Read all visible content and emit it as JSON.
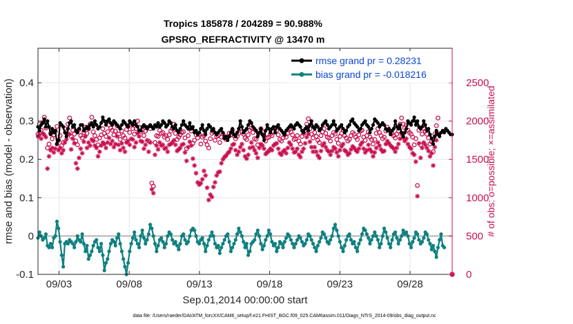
{
  "chart_data": {
    "type": "line",
    "title": "Tropics 185878 / 204289 = 90.988%",
    "subtitle": "GPSRO_REFRACTIVITY @ 13470 m",
    "xlabel": "Sep.01,2014 00:00:00 start",
    "ylabel": "rmse and bias (model - observation)",
    "ylabel_right": "# of obs: o=possible; ×=assimilated",
    "footer": "data file: /Users/raeder/DAI/ATM_forcXX/CAM6_setup/f.e21.FHIST_BGC.f09_025.CAM6assim.011/Diags_NTrS_2014-09/obs_diag_output.nc",
    "x_ticks": [
      "09/03",
      "09/08",
      "09/13",
      "09/18",
      "09/23",
      "09/28"
    ],
    "x_tick_days": [
      3,
      8,
      13,
      18,
      23,
      28
    ],
    "x_range_days": [
      1.5,
      31.0
    ],
    "y_ticks": [
      "-0.1",
      "0",
      "0.1",
      "0.2",
      "0.3",
      "0.4"
    ],
    "y_tick_values": [
      -0.1,
      0,
      0.1,
      0.2,
      0.3,
      0.4
    ],
    "ylim": [
      -0.1,
      0.49
    ],
    "y2_ticks": [
      "0",
      "500",
      "1000",
      "1500",
      "2000",
      "2500"
    ],
    "y2_tick_values": [
      0,
      500,
      1000,
      1500,
      2000,
      2500
    ],
    "y2lim": [
      0,
      2950
    ],
    "legend": [
      {
        "label": "rmse grand pr = 0.28231",
        "color": "#000000"
      },
      {
        "label": "bias grand pr = -0.018216",
        "color": "#0f8080"
      }
    ],
    "series": [
      {
        "name": "rmse",
        "color": "#000000",
        "values": [
          0.285,
          0.275,
          0.29,
          0.295,
          0.305,
          0.285,
          0.3,
          0.285,
          0.265,
          0.28,
          0.27,
          0.275,
          0.24,
          0.25,
          0.295,
          0.29,
          0.285,
          0.27,
          0.26,
          0.28,
          0.295,
          0.3,
          0.285,
          0.29,
          0.275,
          0.27,
          0.28,
          0.29,
          0.29,
          0.275,
          0.28,
          0.285,
          0.28,
          0.29,
          0.295,
          0.285,
          0.3,
          0.29,
          0.28,
          0.285,
          0.295,
          0.31,
          0.3,
          0.29,
          0.3,
          0.305,
          0.295,
          0.29,
          0.3,
          0.295,
          0.29,
          0.285,
          0.28,
          0.29,
          0.3,
          0.295,
          0.29,
          0.285,
          0.3,
          0.295,
          0.29,
          0.3,
          0.29,
          0.285,
          0.275,
          0.275,
          0.285,
          0.29,
          0.285,
          0.28,
          0.285,
          0.29,
          0.285,
          0.28,
          0.29,
          0.285,
          0.295,
          0.285,
          0.29,
          0.3,
          0.295,
          0.285,
          0.29,
          0.3,
          0.295,
          0.285,
          0.28,
          0.29,
          0.275,
          0.27,
          0.28,
          0.29,
          0.3,
          0.29,
          0.285,
          0.28,
          0.295,
          0.28,
          0.285,
          0.27,
          0.275,
          0.265,
          0.27,
          0.28,
          0.29,
          0.275,
          0.265,
          0.28,
          0.29,
          0.285,
          0.275,
          0.28,
          0.27,
          0.265,
          0.27,
          0.275,
          0.28,
          0.27,
          0.255,
          0.26,
          0.25,
          0.26,
          0.27,
          0.28,
          0.265,
          0.26,
          0.27,
          0.28,
          0.3,
          0.285,
          0.27,
          0.275,
          0.28,
          0.29,
          0.3,
          0.295,
          0.285,
          0.28,
          0.275,
          0.26,
          0.27,
          0.28,
          0.265,
          0.25,
          0.275,
          0.29,
          0.28,
          0.27,
          0.28,
          0.285,
          0.27,
          0.285,
          0.29,
          0.28,
          0.275,
          0.27,
          0.265,
          0.275,
          0.28,
          0.285,
          0.29,
          0.285,
          0.28,
          0.29,
          0.295,
          0.29,
          0.285,
          0.275,
          0.27,
          0.28,
          0.285,
          0.275,
          0.29,
          0.3,
          0.285,
          0.28,
          0.29,
          0.285,
          0.275,
          0.28,
          0.29,
          0.295,
          0.3,
          0.29,
          0.28,
          0.285,
          0.29,
          0.3,
          0.29,
          0.275,
          0.28,
          0.285,
          0.29,
          0.28,
          0.27,
          0.275,
          0.285,
          0.29,
          0.3,
          0.305,
          0.295,
          0.29,
          0.285,
          0.275,
          0.28,
          0.29,
          0.295,
          0.3,
          0.29,
          0.285,
          0.27,
          0.28,
          0.29,
          0.305,
          0.3,
          0.295,
          0.285,
          0.29,
          0.295,
          0.29,
          0.28,
          0.275,
          0.28,
          0.265,
          0.275,
          0.28,
          0.3,
          0.285,
          0.28,
          0.29,
          0.27,
          0.26,
          0.27,
          0.28,
          0.3,
          0.295,
          0.29,
          0.3,
          0.31,
          0.29,
          0.3,
          0.285,
          0.28,
          0.285,
          0.3,
          0.29,
          0.275,
          0.28,
          0.265,
          0.255,
          0.24,
          0.26,
          0.275,
          0.265,
          0.26,
          0.27,
          0.275,
          0.27,
          0.28,
          0.275,
          0.27,
          0.265,
          0.265
        ]
      },
      {
        "name": "bias",
        "color": "#0f8080",
        "values": [
          -0.005,
          0.01,
          0.0,
          -0.01,
          -0.005,
          0.005,
          -0.025,
          -0.03,
          -0.02,
          -0.03,
          -0.005,
          0.0,
          0.038,
          0.02,
          -0.015,
          -0.05,
          -0.08,
          -0.02,
          -0.015,
          -0.02,
          -0.01,
          -0.015,
          -0.02,
          -0.03,
          -0.015,
          0.0,
          -0.01,
          -0.015,
          0.005,
          -0.02,
          -0.04,
          -0.025,
          -0.06,
          -0.05,
          -0.04,
          -0.025,
          -0.015,
          -0.01,
          -0.03,
          -0.04,
          -0.02,
          -0.05,
          -0.09,
          -0.07,
          -0.06,
          -0.04,
          -0.02,
          -0.01,
          -0.015,
          -0.025,
          -0.005,
          0.005,
          -0.02,
          -0.04,
          -0.06,
          -0.08,
          -0.1,
          -0.07,
          -0.04,
          -0.02,
          -0.005,
          0.01,
          -0.01,
          -0.02,
          -0.03,
          0.0,
          0.015,
          -0.005,
          -0.02,
          -0.01,
          0.005,
          0.03,
          0.02,
          0.0,
          -0.02,
          -0.04,
          -0.025,
          -0.01,
          -0.005,
          -0.015,
          -0.03,
          -0.02,
          0.0,
          0.01,
          0.005,
          -0.01,
          -0.02,
          -0.015,
          -0.025,
          -0.035,
          -0.02,
          0.0,
          0.005,
          -0.01,
          -0.02,
          -0.015,
          0.0,
          0.015,
          0.02,
          0.015,
          0.0,
          -0.015,
          -0.02,
          -0.01,
          -0.005,
          -0.02,
          -0.04,
          -0.025,
          -0.01,
          0.0,
          0.01,
          0.0,
          -0.02,
          -0.03,
          -0.025,
          -0.045,
          -0.03,
          -0.02,
          -0.01,
          0.0,
          0.005,
          -0.015,
          -0.04,
          -0.03,
          -0.02,
          -0.01,
          0.005,
          0.02,
          0.01,
          0.0,
          -0.015,
          -0.03,
          -0.02,
          -0.05,
          -0.04,
          -0.02,
          -0.015,
          -0.01,
          0.005,
          0.015,
          0.0,
          -0.02,
          -0.035,
          -0.025,
          -0.01,
          0.0,
          0.015,
          0.005,
          -0.015,
          -0.025,
          -0.02,
          -0.04,
          -0.03,
          -0.015,
          -0.02,
          -0.03,
          -0.015,
          -0.005,
          0.005,
          0.0,
          -0.01,
          -0.02,
          -0.03,
          -0.02,
          -0.01,
          0.0,
          -0.005,
          -0.015,
          -0.025,
          -0.02,
          -0.01,
          0.005,
          0.0,
          -0.01,
          -0.02,
          -0.03,
          -0.04,
          -0.025,
          -0.015,
          -0.005,
          0.01,
          0.005,
          -0.005,
          -0.015,
          -0.02,
          -0.01,
          0.0,
          0.02,
          0.03,
          0.015,
          0.0,
          -0.015,
          -0.03,
          -0.04,
          -0.025,
          -0.01,
          0.0,
          0.005,
          -0.01,
          -0.02,
          -0.015,
          -0.03,
          -0.04,
          -0.02,
          -0.01,
          0.005,
          0.02,
          0.015,
          0.005,
          -0.005,
          -0.02,
          -0.01,
          0.0,
          0.01,
          0.0,
          -0.01,
          -0.03,
          -0.02,
          0.0,
          0.02,
          0.01,
          -0.005,
          -0.02,
          -0.03,
          -0.01,
          0.005,
          0.01,
          -0.005,
          -0.02,
          -0.01,
          0.0,
          0.015,
          0.005,
          0.01,
          0.0,
          -0.02,
          -0.03,
          -0.015,
          -0.005,
          0.01,
          0.005,
          -0.01,
          -0.02,
          -0.015,
          -0.005,
          0.01,
          0.005,
          -0.01,
          -0.02,
          -0.035,
          -0.025,
          -0.04,
          -0.055,
          -0.03,
          -0.01,
          0.005,
          -0.025,
          -0.03
        ]
      },
      {
        "name": "possible",
        "color": "#c8104e",
        "marker": "circle",
        "values": [
          1830,
          1960,
          1880,
          1980,
          2050,
          1910,
          1650,
          1700,
          1840,
          1770,
          1820,
          1870,
          1930,
          1750,
          1810,
          1680,
          1720,
          1900,
          1860,
          1960,
          2040,
          1800,
          1880,
          1830,
          1740,
          1690,
          1890,
          1810,
          1780,
          1850,
          1920,
          1840,
          1900,
          1960,
          2050,
          1860,
          1810,
          1760,
          1690,
          1780,
          1820,
          1900,
          1840,
          1800,
          1860,
          1950,
          1910,
          1880,
          1820,
          1870,
          1940,
          1830,
          1760,
          1870,
          1810,
          1780,
          1890,
          1930,
          1850,
          1960,
          1900,
          1830,
          1900,
          2000,
          1920,
          1860,
          1880,
          1810,
          1870,
          1920,
          1740,
          1900,
          1190,
          1150,
          1720,
          1810,
          1800,
          1880,
          1840,
          1850,
          1790,
          1810,
          1760,
          1820,
          1870,
          1900,
          1960,
          1840,
          1760,
          1790,
          1820,
          1850,
          1860,
          1780,
          1640,
          1810,
          1900,
          1870,
          1710,
          1750,
          1820,
          1780,
          1830,
          1700,
          1790,
          1810,
          1740,
          1690,
          1650,
          1770,
          1840,
          1860,
          1750,
          1800,
          1810,
          1720,
          1790,
          1830,
          1780,
          1760,
          1790,
          1840,
          1820,
          1880,
          1810,
          1770,
          1800,
          1840,
          1900,
          1860,
          1830,
          1780,
          1760,
          1820,
          1880,
          1910,
          1850,
          1770,
          1760,
          1690,
          1840,
          1900,
          1860,
          1800,
          1740,
          1780,
          1790,
          1830,
          1810,
          1860,
          1900,
          1880,
          1820,
          1760,
          1740,
          1780,
          1820,
          1790,
          1840,
          1890,
          1860,
          1820,
          1760,
          1770,
          1810,
          1740,
          1700,
          1800,
          1840,
          1880,
          1960,
          2030,
          1900,
          1830,
          1780,
          1850,
          1800,
          1750,
          1720,
          1810,
          1860,
          1900,
          1840,
          1790,
          1780,
          1740,
          1810,
          1850,
          1830,
          1760,
          1710,
          1800,
          1840,
          1880,
          1810,
          1780,
          1740,
          1760,
          1810,
          1850,
          1830,
          1790,
          1760,
          1820,
          1870,
          1880,
          1790,
          1750,
          1810,
          1860,
          1790,
          1760,
          1700,
          1760,
          1840,
          1900,
          1850,
          1810,
          1770,
          1790,
          1870,
          1920,
          1880,
          1860,
          1840,
          1810,
          1780,
          1830,
          1870,
          1960,
          2040,
          1960,
          1910,
          1950,
          1880,
          1850,
          1830,
          1790,
          1690,
          1770,
          1160,
          1880,
          1690,
          1830,
          1900,
          1870,
          1830,
          1780,
          1700,
          1730,
          1600,
          1830,
          1940,
          2040
        ]
      },
      {
        "name": "assimilated",
        "color": "#c8104e",
        "marker": "asterisk",
        "values": [
          1800,
          1820,
          1770,
          1840,
          1820,
          1790,
          1380,
          1540,
          1620,
          1650,
          1590,
          1640,
          1700,
          1620,
          1650,
          1580,
          1620,
          1720,
          1760,
          1830,
          1830,
          1630,
          1770,
          1710,
          1450,
          1380,
          1520,
          1640,
          1580,
          1730,
          1800,
          1650,
          1720,
          1680,
          1760,
          1740,
          1680,
          1650,
          1540,
          1600,
          1680,
          1720,
          1700,
          1650,
          1720,
          1780,
          1700,
          1740,
          1660,
          1700,
          1800,
          1690,
          1620,
          1710,
          1650,
          1600,
          1720,
          1740,
          1690,
          1770,
          1760,
          1660,
          1720,
          1840,
          1800,
          1740,
          1730,
          1640,
          1690,
          1750,
          1600,
          1720,
          1110,
          1060,
          1560,
          1680,
          1630,
          1720,
          1680,
          1690,
          1640,
          1650,
          1600,
          1690,
          1700,
          1720,
          1750,
          1690,
          1610,
          1630,
          1650,
          1690,
          1700,
          1590,
          1480,
          1660,
          1730,
          1680,
          1510,
          1420,
          1320,
          1200,
          1170,
          1190,
          1240,
          1350,
          1290,
          1130,
          970,
          1040,
          1010,
          1140,
          1200,
          1290,
          1330,
          1340,
          1450,
          1500,
          1530,
          1550,
          1580,
          1600,
          1640,
          1690,
          1700,
          1620,
          1560,
          1600,
          1660,
          1700,
          1620,
          1540,
          1510,
          1560,
          1650,
          1720,
          1660,
          1620,
          1580,
          1520,
          1650,
          1700,
          1680,
          1640,
          1570,
          1590,
          1610,
          1640,
          1620,
          1680,
          1700,
          1710,
          1640,
          1580,
          1560,
          1600,
          1620,
          1580,
          1650,
          1720,
          1690,
          1640,
          1590,
          1600,
          1640,
          1560,
          1530,
          1600,
          1640,
          1710,
          1790,
          1830,
          1730,
          1660,
          1600,
          1660,
          1600,
          1550,
          1520,
          1610,
          1680,
          1710,
          1660,
          1620,
          1600,
          1560,
          1610,
          1660,
          1640,
          1590,
          1540,
          1620,
          1670,
          1700,
          1620,
          1600,
          1560,
          1580,
          1630,
          1670,
          1650,
          1620,
          1600,
          1640,
          1690,
          1720,
          1640,
          1590,
          1620,
          1690,
          1630,
          1600,
          1540,
          1590,
          1650,
          1720,
          1680,
          1630,
          1600,
          1610,
          1700,
          1740,
          1710,
          1680,
          1660,
          1640,
          1600,
          1650,
          1700,
          1770,
          1830,
          1780,
          1740,
          1770,
          1700,
          1660,
          1640,
          1580,
          1560,
          1470,
          1020,
          1710,
          1520,
          1650,
          1720,
          1690,
          1650,
          1610,
          1540,
          1580,
          1420,
          1660,
          1750,
          1840
        ]
      }
    ],
    "outlier_marker": {
      "x_day": 31.0,
      "value": 0
    }
  }
}
